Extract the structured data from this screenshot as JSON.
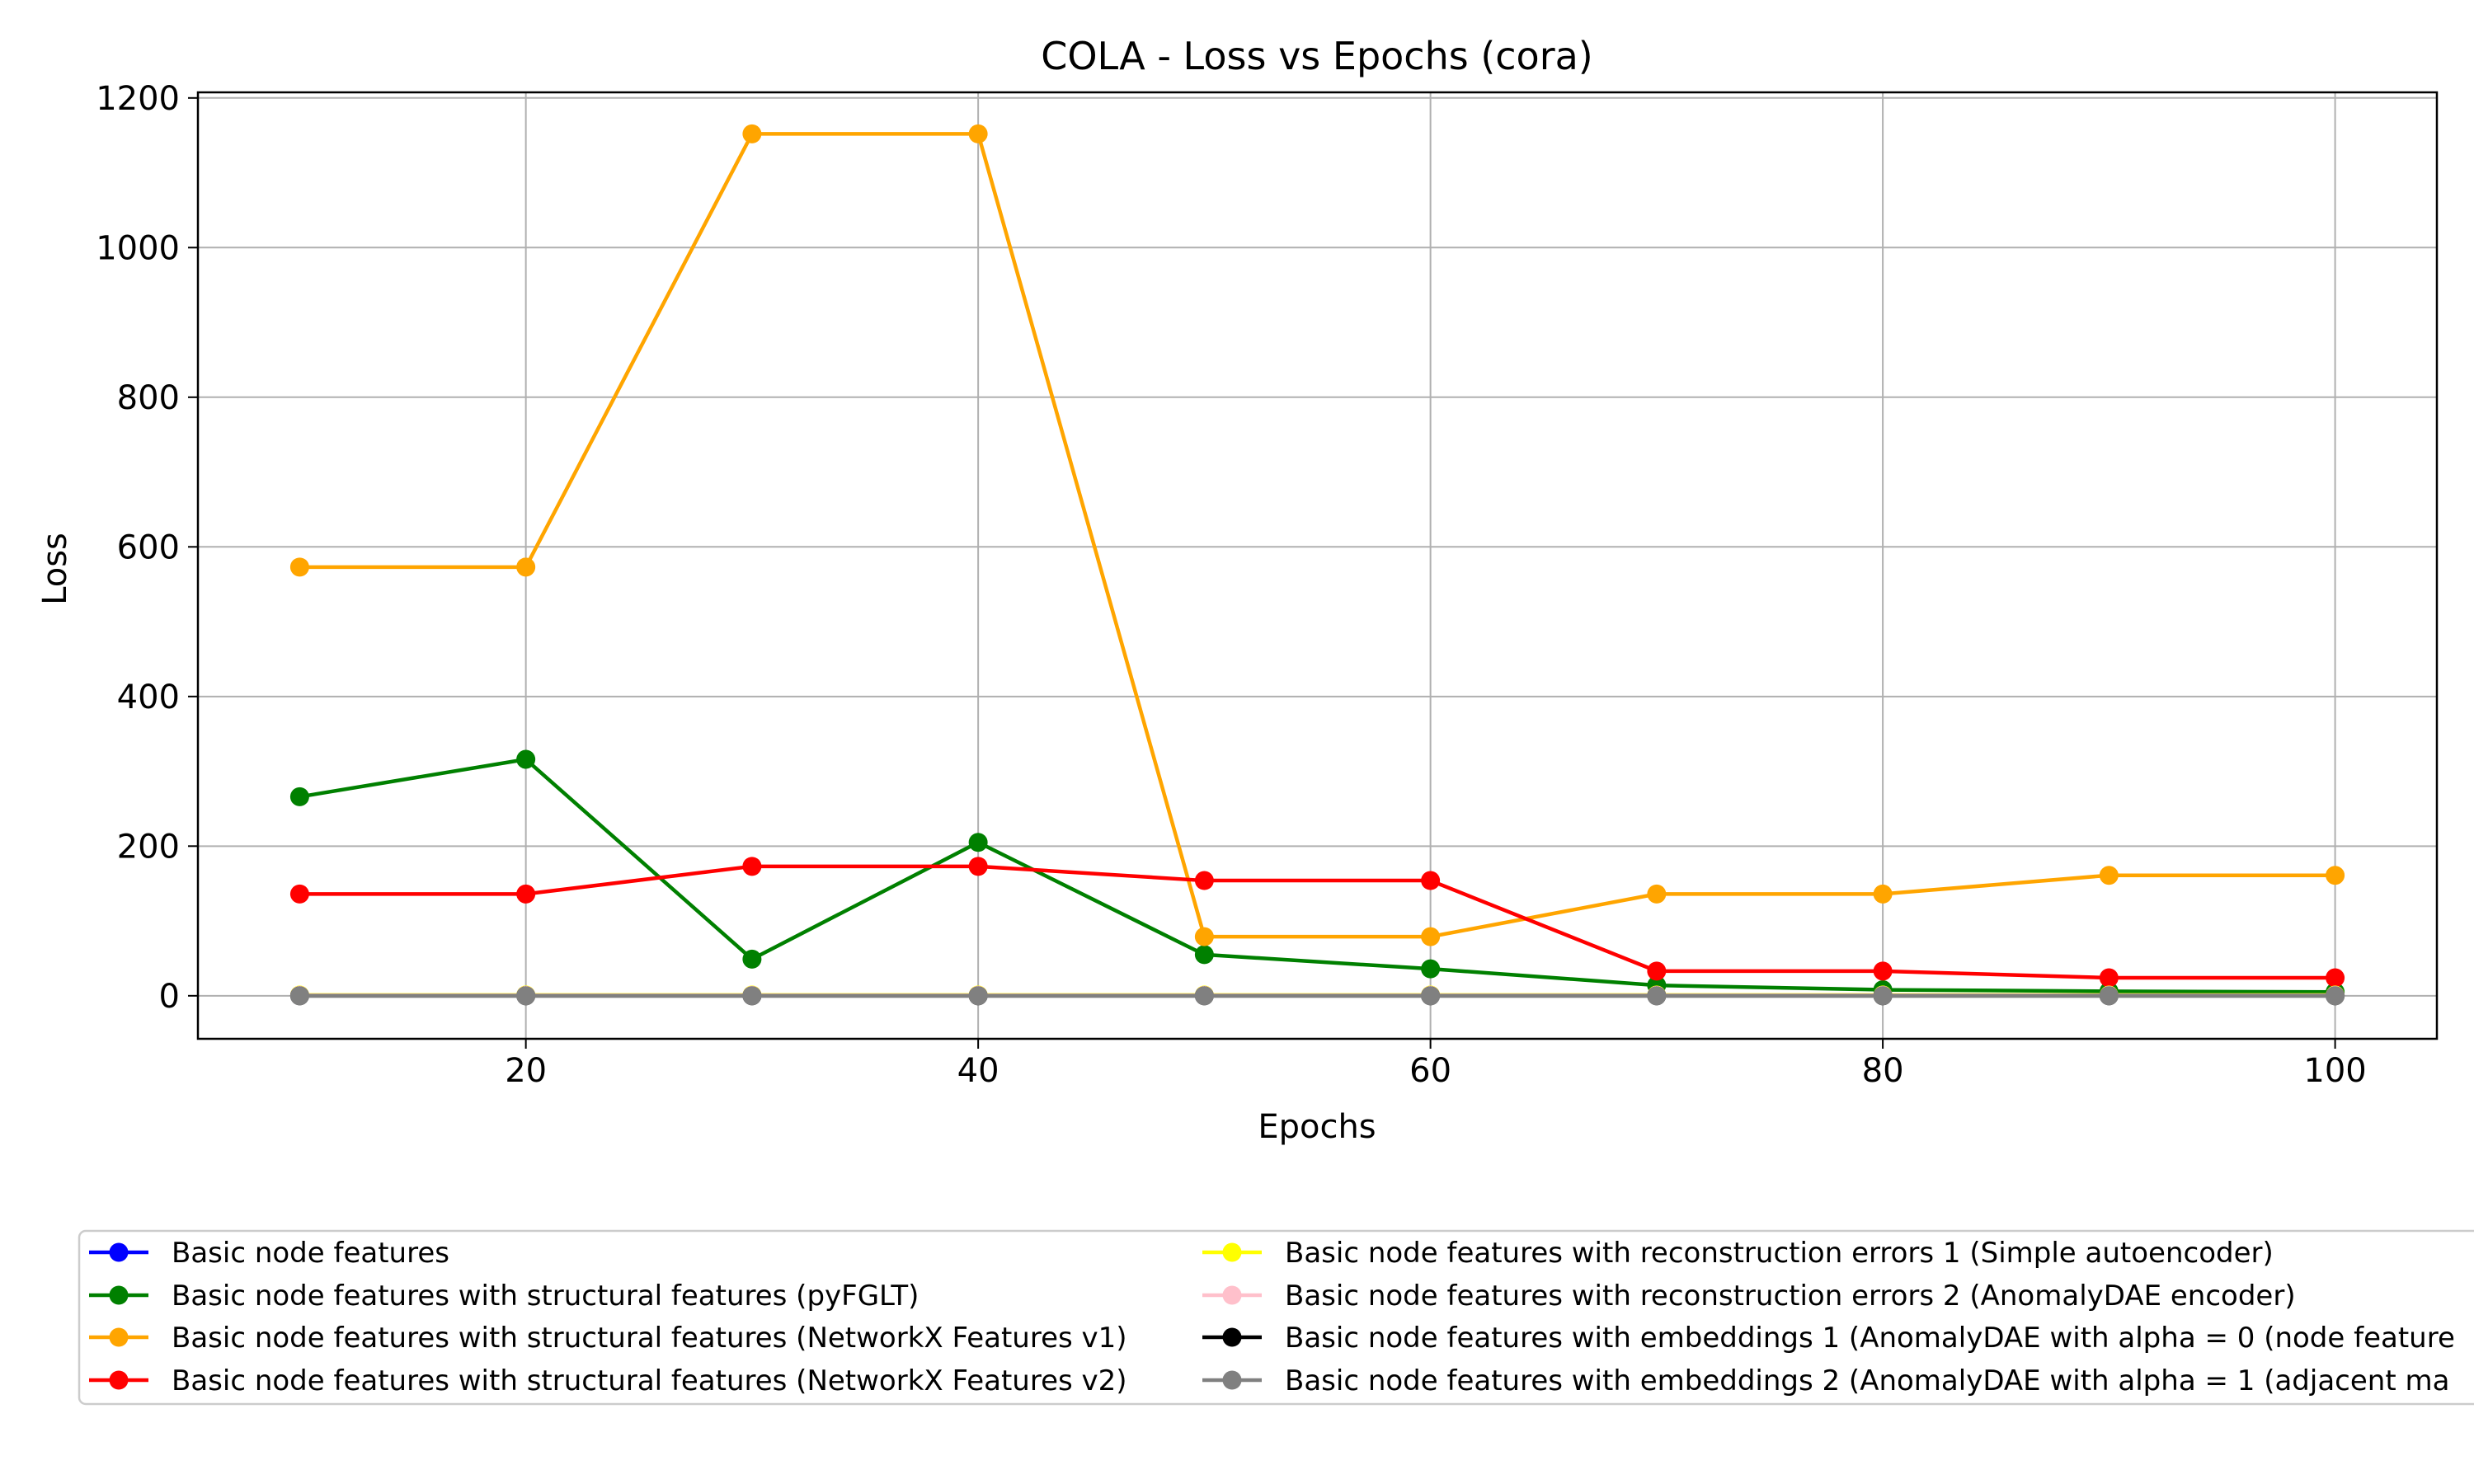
{
  "chart_data": {
    "type": "line",
    "title": "COLA - Loss vs Epochs (cora)",
    "xlabel": "Epochs",
    "ylabel": "Loss",
    "xlim": [
      5.5,
      104.5
    ],
    "ylim": [
      -57.5,
      1207.5
    ],
    "xticks": [
      20,
      40,
      60,
      80,
      100
    ],
    "yticks": [
      0,
      200,
      400,
      600,
      800,
      1000,
      1200
    ],
    "grid": true,
    "legend_position": "bottom",
    "x": [
      10,
      20,
      30,
      40,
      50,
      60,
      70,
      80,
      90,
      100
    ],
    "series": [
      {
        "name": "Basic node features",
        "color": "#0000ff",
        "values": [
          0.5,
          0.5,
          0.5,
          0.5,
          0.5,
          0.5,
          0.5,
          0.5,
          0.5,
          0.5
        ]
      },
      {
        "name": "Basic node features with structural features (pyFGLT)",
        "color": "#008000",
        "values": [
          266,
          316,
          49,
          205,
          55,
          36,
          14,
          8,
          6,
          5
        ]
      },
      {
        "name": "Basic node features with structural features (NetworkX Features v1)",
        "color": "#ffa500",
        "values": [
          573,
          573,
          1152,
          1152,
          79,
          79,
          136,
          136,
          161,
          161
        ]
      },
      {
        "name": "Basic node features with structural features (NetworkX Features v2)",
        "color": "#ff0000",
        "values": [
          136,
          136,
          173,
          173,
          154,
          154,
          33,
          33,
          24,
          24
        ]
      },
      {
        "name": "Basic node features with reconstruction errors 1 (Simple autoencoder)",
        "color": "#ffff00",
        "values": [
          1,
          1,
          1,
          1,
          1,
          1,
          1,
          1,
          1,
          1
        ]
      },
      {
        "name": "Basic node features with reconstruction errors 2 (AnomalyDAE encoder)",
        "color": "#ffc0cb",
        "values": [
          0.5,
          0.5,
          0.5,
          0.5,
          0.5,
          0.5,
          0.5,
          0.5,
          0.5,
          0.5
        ]
      },
      {
        "name": "Basic node features with embeddings 1 (AnomalyDAE with alpha = 0 (node feature",
        "color": "#000000",
        "values": [
          0,
          0,
          0,
          0,
          0,
          0,
          0,
          0,
          0,
          0
        ]
      },
      {
        "name": "Basic node features with embeddings 2 (AnomalyDAE with alpha = 1 (adjacent ma",
        "color": "#808080",
        "values": [
          0,
          0,
          0,
          0,
          0,
          0,
          0,
          0,
          0,
          0
        ]
      }
    ]
  }
}
